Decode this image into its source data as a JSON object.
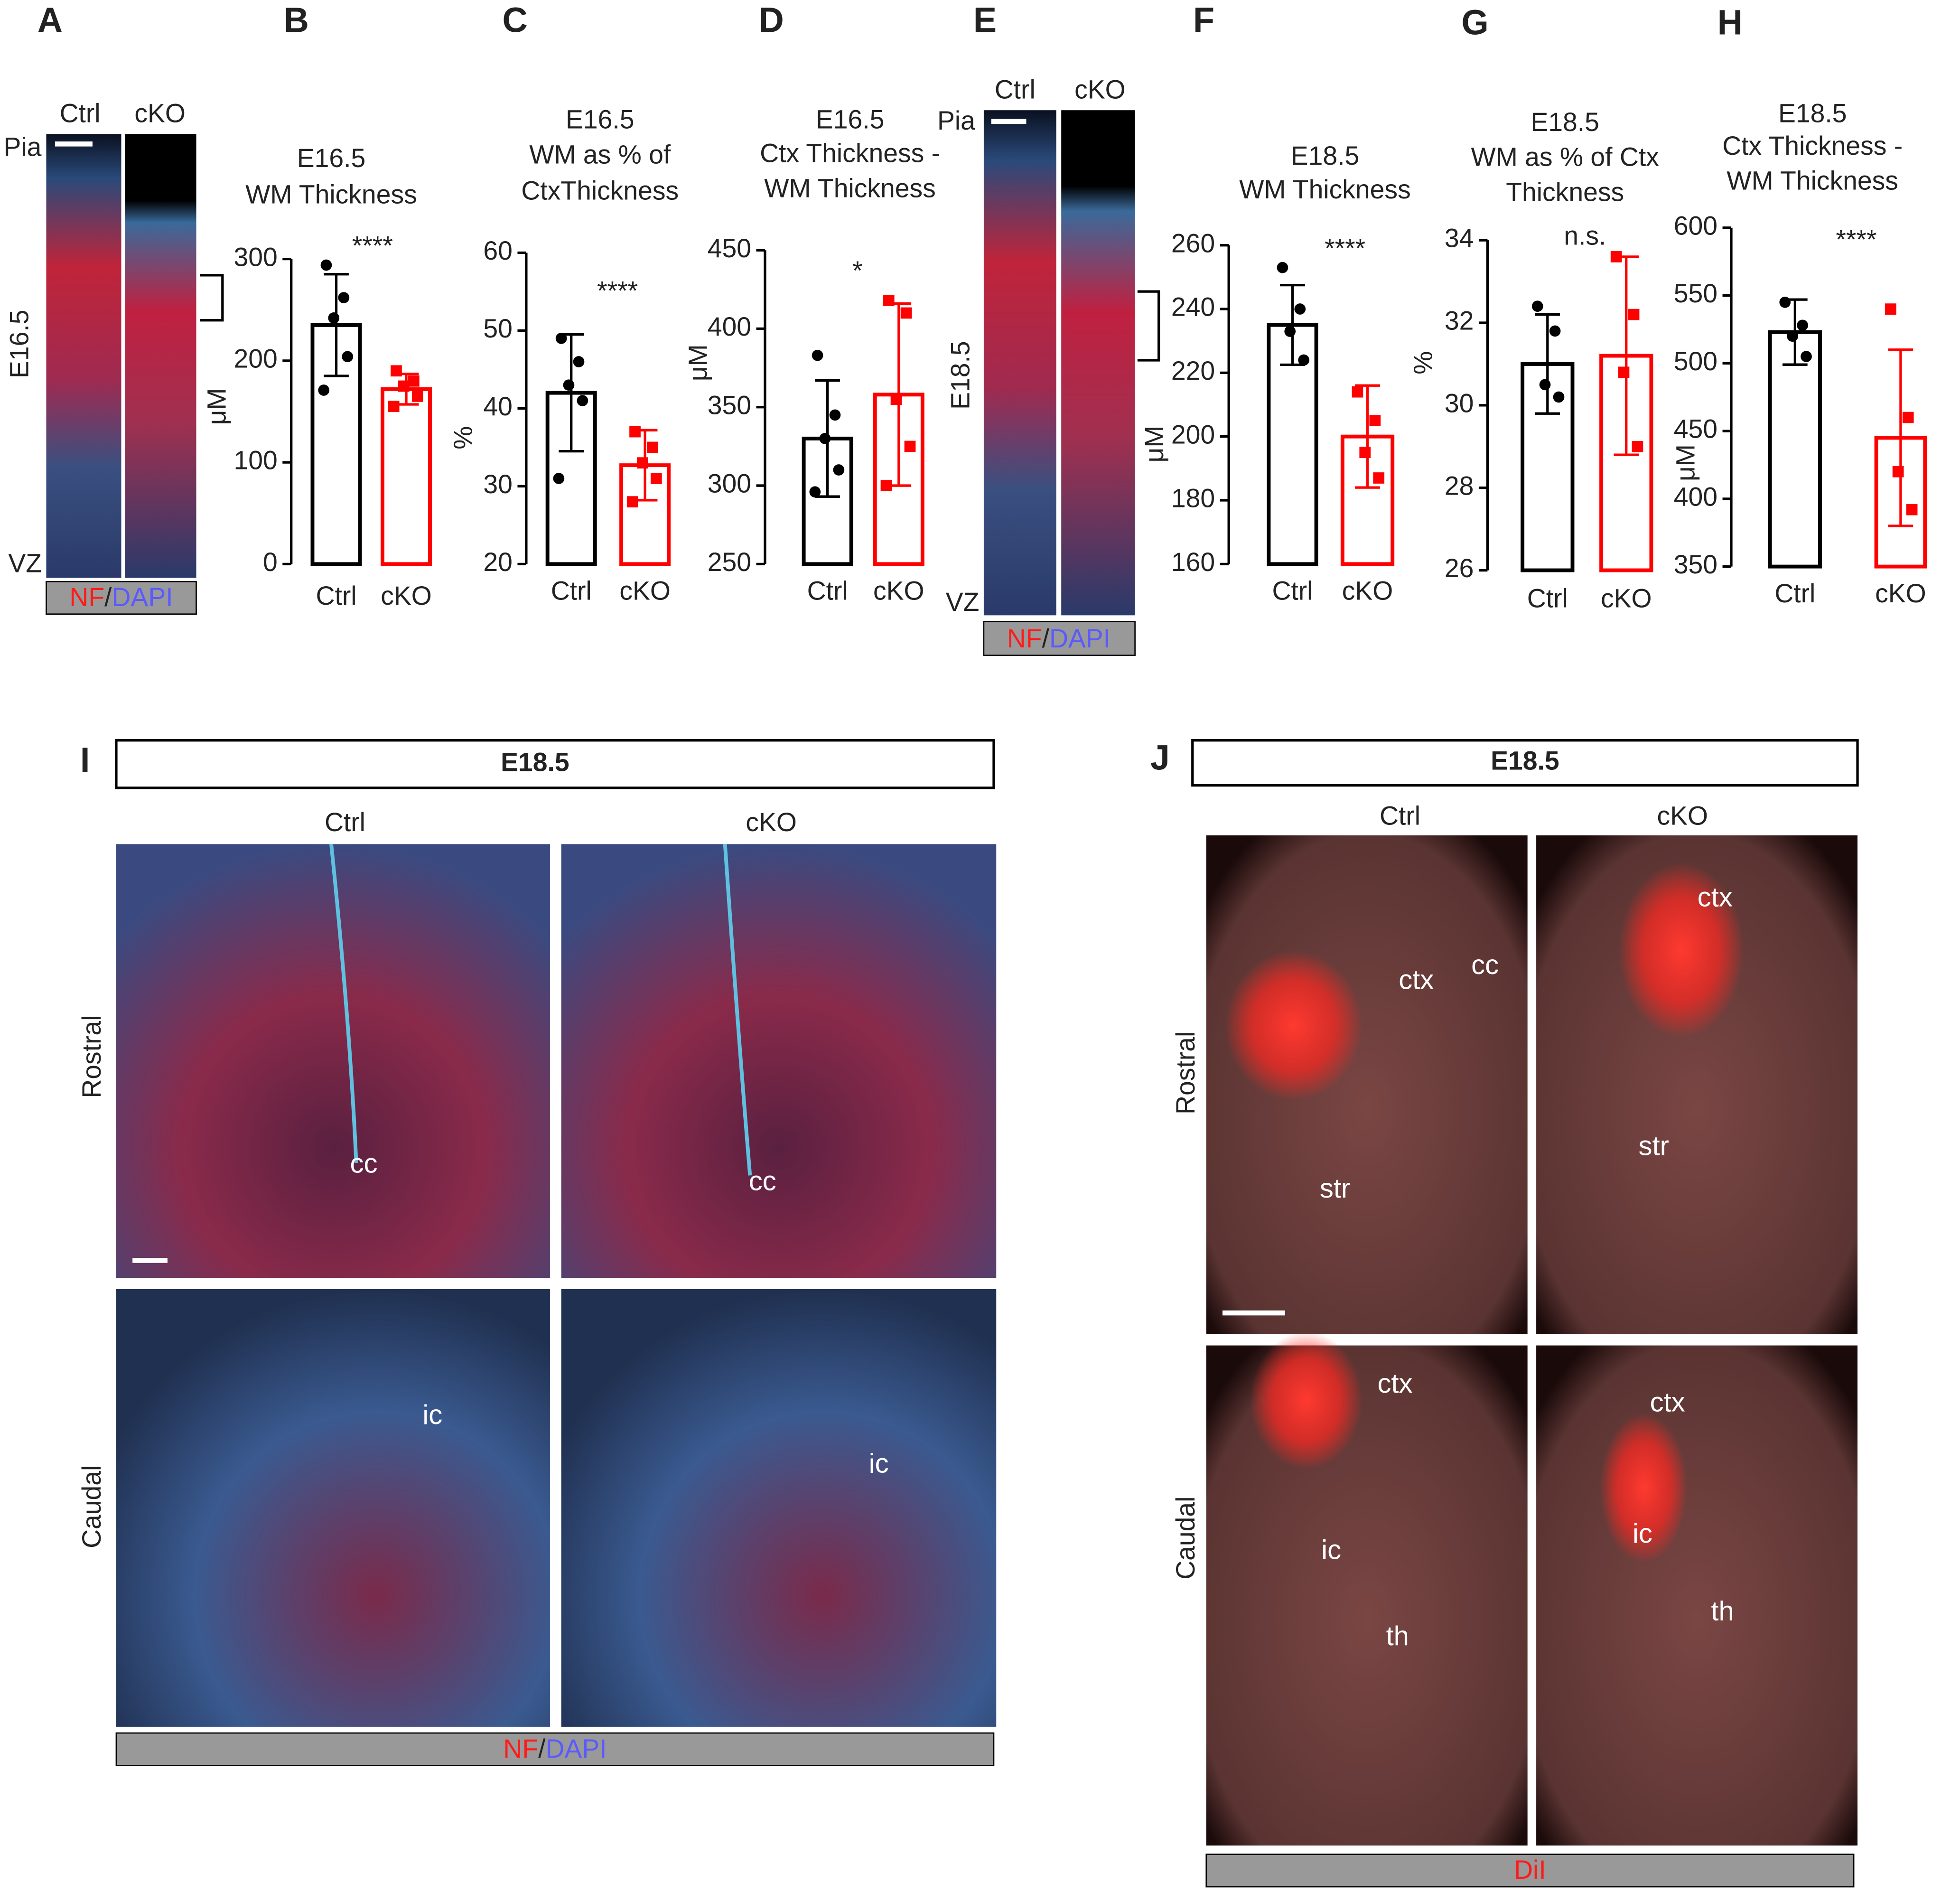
{
  "panel_letters": [
    "A",
    "B",
    "C",
    "D",
    "E",
    "F",
    "G",
    "H",
    "I",
    "J"
  ],
  "chart_data": [
    {
      "type": "bar",
      "title": [
        "E16.5",
        "WM Thickness"
      ],
      "ylabel": "μM",
      "categories": [
        "Ctrl",
        "cKO"
      ],
      "colors": [
        "#000000",
        "#ff0000"
      ],
      "values": [
        235,
        172
      ],
      "errors": [
        50,
        15
      ],
      "points": [
        [
          294,
          262,
          242,
          204,
          171
        ],
        [
          190,
          180,
          175,
          165,
          155
        ]
      ],
      "ylim": [
        0,
        300
      ],
      "yticks": [
        0,
        100,
        200,
        300
      ],
      "annotation": "****"
    },
    {
      "type": "bar",
      "title": [
        "E16.5",
        "WM as % of",
        "CtxThickness"
      ],
      "ylabel": "%",
      "categories": [
        "Ctrl",
        "cKO"
      ],
      "colors": [
        "#000000",
        "#ff0000"
      ],
      "values": [
        42,
        32.7
      ],
      "errors": [
        7.5,
        4.5
      ],
      "points": [
        [
          49,
          46,
          43,
          41,
          31
        ],
        [
          37,
          35,
          33,
          31,
          28
        ]
      ],
      "ylim": [
        20,
        60
      ],
      "yticks": [
        20,
        30,
        40,
        50,
        60
      ],
      "annotation": "****"
    },
    {
      "type": "bar",
      "title": [
        "E16.5",
        "Ctx Thickness -",
        "WM Thickness"
      ],
      "ylabel": "μM",
      "categories": [
        "Ctrl",
        "cKO"
      ],
      "colors": [
        "#000000",
        "#ff0000"
      ],
      "values": [
        330,
        358
      ],
      "errors": [
        37,
        58
      ],
      "points": [
        [
          383,
          345,
          330,
          310,
          296
        ],
        [
          418,
          410,
          355,
          325,
          300
        ]
      ],
      "ylim": [
        250,
        450
      ],
      "yticks": [
        250,
        300,
        350,
        400,
        450
      ],
      "annotation": "*"
    },
    {
      "type": "bar",
      "title": [
        "E18.5",
        "WM Thickness"
      ],
      "ylabel": "μM",
      "categories": [
        "Ctrl",
        "cKO"
      ],
      "colors": [
        "#000000",
        "#ff0000"
      ],
      "values": [
        235,
        200
      ],
      "errors": [
        12.5,
        16
      ],
      "points": [
        [
          253,
          240,
          233,
          224
        ],
        [
          214,
          205,
          195,
          187
        ]
      ],
      "ylim": [
        160,
        260
      ],
      "yticks": [
        160,
        180,
        200,
        220,
        240,
        260
      ],
      "annotation": "****"
    },
    {
      "type": "bar",
      "title": [
        "E18.5",
        "WM as % of Ctx",
        "Thickness"
      ],
      "ylabel": "%",
      "categories": [
        "Ctrl",
        "cKO"
      ],
      "colors": [
        "#000000",
        "#ff0000"
      ],
      "values": [
        31,
        31.2
      ],
      "errors": [
        1.2,
        2.4
      ],
      "points": [
        [
          32.4,
          31.8,
          30.5,
          30.2
        ],
        [
          33.6,
          32.2,
          30.8,
          29
        ]
      ],
      "ylim": [
        26,
        34
      ],
      "yticks": [
        26,
        28,
        30,
        32,
        34
      ],
      "annotation": "n.s."
    },
    {
      "type": "bar",
      "title": [
        "E18.5",
        "Ctx Thickness -",
        "WM Thickness"
      ],
      "ylabel": "μM",
      "categories": [
        "Ctrl",
        "cKO"
      ],
      "colors": [
        "#000000",
        "#ff0000"
      ],
      "values": [
        523,
        445
      ],
      "errors": [
        24,
        65
      ],
      "points": [
        [
          545,
          528,
          520,
          505
        ],
        [
          540,
          460,
          420,
          392
        ]
      ],
      "ylim": [
        350,
        600
      ],
      "yticks": [
        350,
        400,
        450,
        500,
        550,
        600
      ],
      "annotation": "****"
    }
  ],
  "panel_A": {
    "columns": [
      "Ctrl",
      "cKO"
    ],
    "top": "Pia",
    "bottom": "VZ",
    "stage": "E16.5",
    "stain": [
      "NF",
      "/",
      "DAPI"
    ]
  },
  "panel_E": {
    "columns": [
      "Ctrl",
      "cKO"
    ],
    "top": "Pia",
    "bottom": "VZ",
    "stage": "E18.5",
    "stain": [
      "NF",
      "/",
      "DAPI"
    ]
  },
  "panel_I": {
    "header": "E18.5",
    "columns": [
      "Ctrl",
      "cKO"
    ],
    "rows": [
      "Rostral",
      "Caudal"
    ],
    "labels": [
      "cc",
      "cc",
      "ic",
      "ic"
    ],
    "stain": [
      "NF",
      "/",
      "DAPI"
    ]
  },
  "panel_J": {
    "header": "E18.5",
    "columns": [
      "Ctrl",
      "cKO"
    ],
    "rows": [
      "Rostral",
      "Caudal"
    ],
    "labels": [
      "ctx",
      "cc",
      "str",
      "ctx",
      "str",
      "ctx",
      "ic",
      "th",
      "ctx",
      "ic",
      "th"
    ],
    "stain": "DiI"
  }
}
